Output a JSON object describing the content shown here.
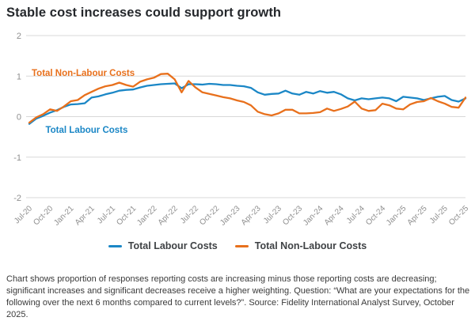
{
  "title": "Stable cost increases could support growth",
  "footnote": "Chart shows proportion of responses reporting costs are increasing minus those reporting costs are decreasing; significant increases and significant decreases receive a higher weighting. Question: “What are your expectations for the following over the next 6 months compared to current levels?”. Source: Fidelity International Analyst Survey, October 2025.",
  "colors": {
    "labour": "#1b87c6",
    "non_labour": "#e8701c",
    "grid": "#d8d8d8",
    "axis_text": "#8f8f8f",
    "title_text": "#25282c",
    "footnote_text": "#3a3a3a",
    "legend_text": "#3f4245",
    "background": "#ffffff"
  },
  "legend": {
    "items": [
      {
        "label": "Total Labour Costs",
        "color_key": "labour"
      },
      {
        "label": "Total Non-Labour Costs",
        "color_key": "non_labour"
      }
    ]
  },
  "chart_data": {
    "type": "line",
    "title": "Stable cost increases could support growth",
    "xlabel": "",
    "ylabel": "",
    "ylim": [
      -2,
      2
    ],
    "y_ticks": [
      2,
      1,
      0,
      -1,
      -2
    ],
    "x_tick_every": 3,
    "grid": true,
    "legend_position": "bottom",
    "x": [
      "Jul-20",
      "Aug-20",
      "Sep-20",
      "Oct-20",
      "Nov-20",
      "Dec-20",
      "Jan-21",
      "Feb-21",
      "Mar-21",
      "Apr-21",
      "May-21",
      "Jun-21",
      "Jul-21",
      "Aug-21",
      "Sep-21",
      "Oct-21",
      "Nov-21",
      "Dec-21",
      "Jan-22",
      "Feb-22",
      "Mar-22",
      "Apr-22",
      "May-22",
      "Jun-22",
      "Jul-22",
      "Aug-22",
      "Sep-22",
      "Oct-22",
      "Nov-22",
      "Dec-22",
      "Jan-23",
      "Feb-23",
      "Mar-23",
      "Apr-23",
      "May-23",
      "Jun-23",
      "Jul-23",
      "Aug-23",
      "Sep-23",
      "Oct-23",
      "Nov-23",
      "Dec-23",
      "Jan-24",
      "Feb-24",
      "Mar-24",
      "Apr-24",
      "May-24",
      "Jun-24",
      "Jul-24",
      "Aug-24",
      "Sep-24",
      "Oct-24",
      "Nov-24",
      "Dec-24",
      "Jan-25",
      "Feb-25",
      "Mar-25",
      "Apr-25",
      "May-25",
      "Jun-25",
      "Jul-25",
      "Aug-25",
      "Sep-25",
      "Oct-25"
    ],
    "x_tick_labels": [
      "Jul-20",
      "Oct-20",
      "Jan-21",
      "Apr-21",
      "Jul-21",
      "Oct-21",
      "Jan-22",
      "Apr-22",
      "Jul-22",
      "Oct-22",
      "Jan-23",
      "Apr-23",
      "Jul-23",
      "Oct-23",
      "Jan-24",
      "Apr-24",
      "Jul-24",
      "Oct-24",
      "Jan-25",
      "Apr-25",
      "Jul-25",
      "Oct-25"
    ],
    "series": [
      {
        "name": "Total Labour Costs",
        "color": "#1b87c6",
        "values": [
          -0.18,
          -0.05,
          0.02,
          0.1,
          0.16,
          0.24,
          0.3,
          0.31,
          0.33,
          0.47,
          0.5,
          0.55,
          0.59,
          0.64,
          0.66,
          0.67,
          0.72,
          0.76,
          0.78,
          0.8,
          0.81,
          0.82,
          0.7,
          0.8,
          0.8,
          0.79,
          0.81,
          0.8,
          0.78,
          0.78,
          0.76,
          0.75,
          0.71,
          0.6,
          0.54,
          0.56,
          0.57,
          0.64,
          0.57,
          0.54,
          0.61,
          0.57,
          0.63,
          0.59,
          0.61,
          0.55,
          0.45,
          0.4,
          0.45,
          0.43,
          0.45,
          0.47,
          0.45,
          0.38,
          0.49,
          0.47,
          0.45,
          0.41,
          0.45,
          0.49,
          0.51,
          0.41,
          0.37,
          0.45
        ]
      },
      {
        "name": "Total Non-Labour Costs",
        "color": "#e8701c",
        "values": [
          -0.15,
          -0.02,
          0.06,
          0.18,
          0.14,
          0.25,
          0.38,
          0.41,
          0.53,
          0.61,
          0.69,
          0.75,
          0.78,
          0.84,
          0.78,
          0.74,
          0.86,
          0.92,
          0.96,
          1.05,
          1.06,
          0.92,
          0.6,
          0.88,
          0.72,
          0.6,
          0.56,
          0.52,
          0.48,
          0.45,
          0.4,
          0.36,
          0.28,
          0.12,
          0.06,
          0.03,
          0.08,
          0.17,
          0.17,
          0.08,
          0.08,
          0.09,
          0.11,
          0.2,
          0.14,
          0.19,
          0.25,
          0.37,
          0.2,
          0.14,
          0.16,
          0.32,
          0.28,
          0.2,
          0.18,
          0.3,
          0.36,
          0.38,
          0.46,
          0.38,
          0.32,
          0.24,
          0.22,
          0.47
        ]
      }
    ],
    "annotations": [
      {
        "text": "Total Non-Labour Costs",
        "month": "Jul-20",
        "value": 1.08,
        "color_key": "non_labour"
      },
      {
        "text": "Total Labour Costs",
        "month": "Sep-20",
        "value": -0.32,
        "color_key": "labour"
      }
    ]
  }
}
